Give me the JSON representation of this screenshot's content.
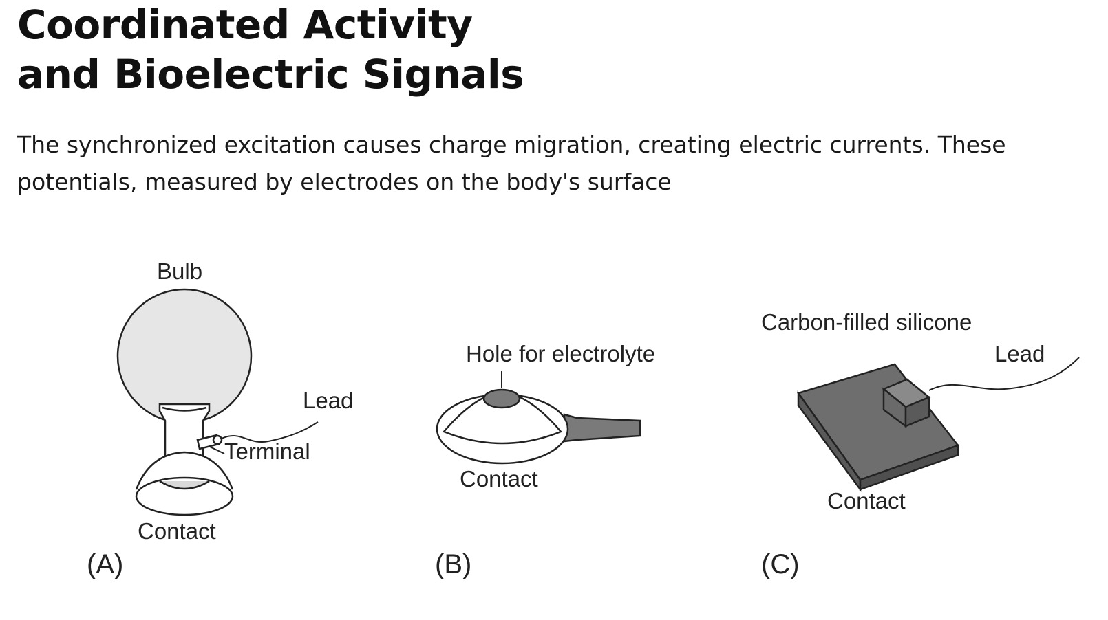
{
  "title": {
    "line1": "Coordinated Activity",
    "line2": "and Bioelectric Signals"
  },
  "description": "The synchronized excitation causes charge migration, creating electric currents. These potentials, measured by electrodes on the body's surface",
  "figure": {
    "panel_a": {
      "label": "(A)",
      "bulb": "Bulb",
      "lead": "Lead",
      "terminal": "Terminal",
      "contact": "Contact"
    },
    "panel_b": {
      "label": "(B)",
      "hole": "Hole for electrolyte",
      "contact": "Contact"
    },
    "panel_c": {
      "label": "(C)",
      "material": "Carbon-filled silicone",
      "lead": "Lead",
      "contact": "Contact"
    },
    "colors": {
      "bulb_fill": "#e6e6e6",
      "dark_fill": "#6e6e6e",
      "stroke": "#222222"
    }
  }
}
